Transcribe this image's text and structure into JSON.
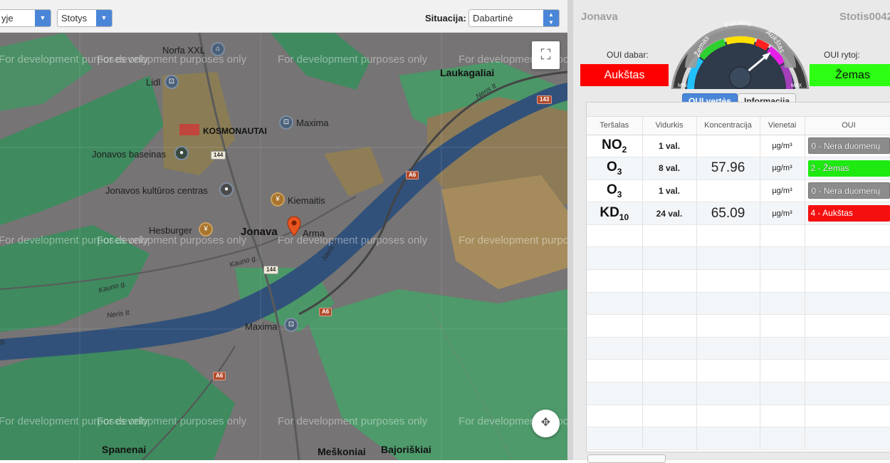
{
  "toolbar": {
    "left_select": "yje",
    "stations_select": "Stotys",
    "situation_label": "Situacija:",
    "situation_select": "Dabartinė"
  },
  "map": {
    "watermark": "For development purposes only",
    "places": {
      "laukagaliai": "Laukagaliai",
      "kosmonautai": "KOSMONAUTAI",
      "jonava": "Jonava",
      "spanenai": "Spanenai",
      "meskoniai": "Meškoniai",
      "bajoriskiai": "Bajoriškiai"
    },
    "pois": {
      "norfa": "Norfa XXL",
      "lidl": "Lidl",
      "maxima1": "Maxima",
      "baseinas": "Jonavos baseinas",
      "kulturos": "Jonavos kultūros centras",
      "kiemaitis": "Kiemaitis",
      "hesburger": "Hesburger",
      "arma": "Arma",
      "maxima2": "Maxima"
    },
    "roads": {
      "neris1": "Neris It",
      "neris2": "Neris It",
      "neris3": "Neris It",
      "kauno1": "Kauno g.",
      "kauno2": "Kauno g.",
      "g": "g."
    },
    "shields": {
      "r143": "143",
      "r144a": "144",
      "r144b": "144",
      "a6a": "A6",
      "a6b": "A6",
      "a6c": "A6"
    },
    "icons": {
      "fullscreen": "fullscreen-icon",
      "locate": "locate-icon",
      "marker": "map-marker-icon"
    }
  },
  "panel": {
    "city": "Jonava",
    "station": "Stotis0042",
    "now_label": "OUI dabar:",
    "now_value": "Aukštas",
    "tomorrow_label": "OUI rytoj:",
    "tomorrow_value": "Žemas",
    "colors": {
      "now": "#ff0000",
      "tomorrow": "#2cff12"
    }
  },
  "gauge": {
    "labels": [
      "Žemas",
      "Vidutinis",
      "Aukštas"
    ],
    "min_label": "MIN",
    "max_label": "MAX",
    "level_fraction": 0.78
  },
  "tabs": {
    "oui": "OUI vertės",
    "info": "Informacija"
  },
  "table": {
    "headers": [
      "Teršalas",
      "Vidurkis",
      "Koncentracija",
      "Vienetai",
      "OUI"
    ],
    "rows": [
      {
        "pollutant": "NO",
        "sub": "2",
        "avg": "1 val.",
        "conc": "",
        "unit": "µg/m³",
        "oui": "0 - Nėra duomenų",
        "oui_class": "none"
      },
      {
        "pollutant": "O",
        "sub": "3",
        "avg": "8 val.",
        "conc": "57.96",
        "unit": "µg/m³",
        "oui": "2 - Žemas",
        "oui_class": "low"
      },
      {
        "pollutant": "O",
        "sub": "3",
        "avg": "1 val.",
        "conc": "",
        "unit": "µg/m³",
        "oui": "0 - Nėra duomenų",
        "oui_class": "none"
      },
      {
        "pollutant": "KD",
        "sub": "10",
        "avg": "24 val.",
        "conc": "65.09",
        "unit": "µg/m³",
        "oui": "4 - Aukštas",
        "oui_class": "high"
      }
    ],
    "empty_rows": 10
  }
}
